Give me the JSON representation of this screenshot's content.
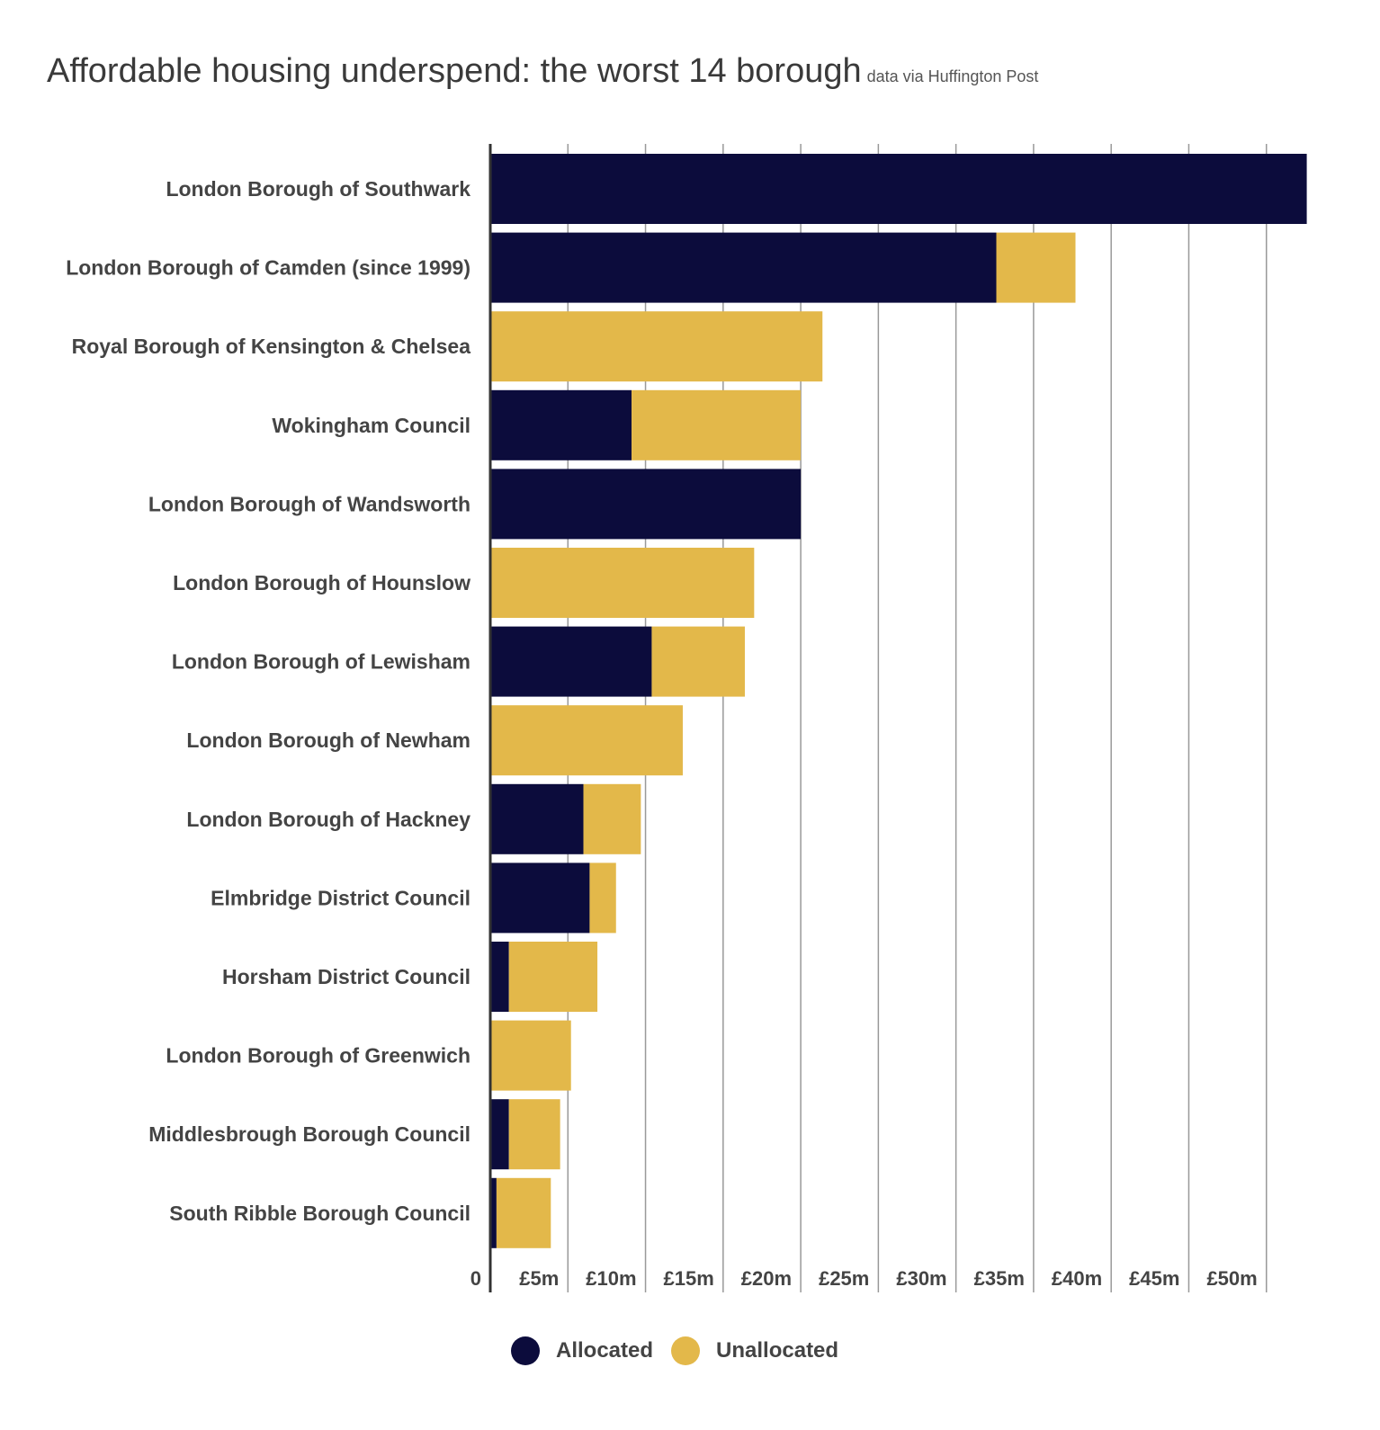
{
  "chart_data": {
    "type": "bar",
    "orientation": "horizontal",
    "stacked": true,
    "title": "Affordable housing underspend: the worst 14 borough",
    "subtitle": "data via Huffington Post",
    "xlabel": "",
    "ylabel": "",
    "xlim": [
      0,
      55
    ],
    "grid": true,
    "legend_position": "bottom",
    "x_ticks": [
      0,
      5,
      10,
      15,
      20,
      25,
      30,
      35,
      40,
      45,
      50
    ],
    "x_tick_labels": [
      "0",
      "£5m",
      "£10m",
      "£15m",
      "£20m",
      "£25m",
      "£30m",
      "£35m",
      "£40m",
      "£45m",
      "£50m"
    ],
    "categories": [
      "London Borough of Southwark",
      "London Borough of Camden (since 1999)",
      "Royal Borough of Kensington & Chelsea",
      "Wokingham Council",
      "London Borough of Wandsworth",
      "London Borough of Hounslow",
      "London Borough of Lewisham",
      "London Borough of Newham",
      "London Borough of Hackney",
      "Elmbridge District Council",
      "Horsham District Council",
      "London Borough of Greenwich",
      "Middlesbrough Borough Council",
      "South Ribble Borough Council"
    ],
    "series": [
      {
        "name": "Allocated",
        "color": "#0c0c3c",
        "values": [
          52.6,
          32.6,
          0,
          9.1,
          20.0,
          0,
          10.4,
          0,
          6.0,
          6.4,
          1.2,
          0,
          1.2,
          0.4
        ]
      },
      {
        "name": "Unallocated",
        "color": "#e3b84a",
        "values": [
          0,
          5.1,
          21.4,
          10.9,
          0,
          17.0,
          6.0,
          12.4,
          3.7,
          1.7,
          5.7,
          5.2,
          3.3,
          3.5
        ]
      }
    ]
  }
}
